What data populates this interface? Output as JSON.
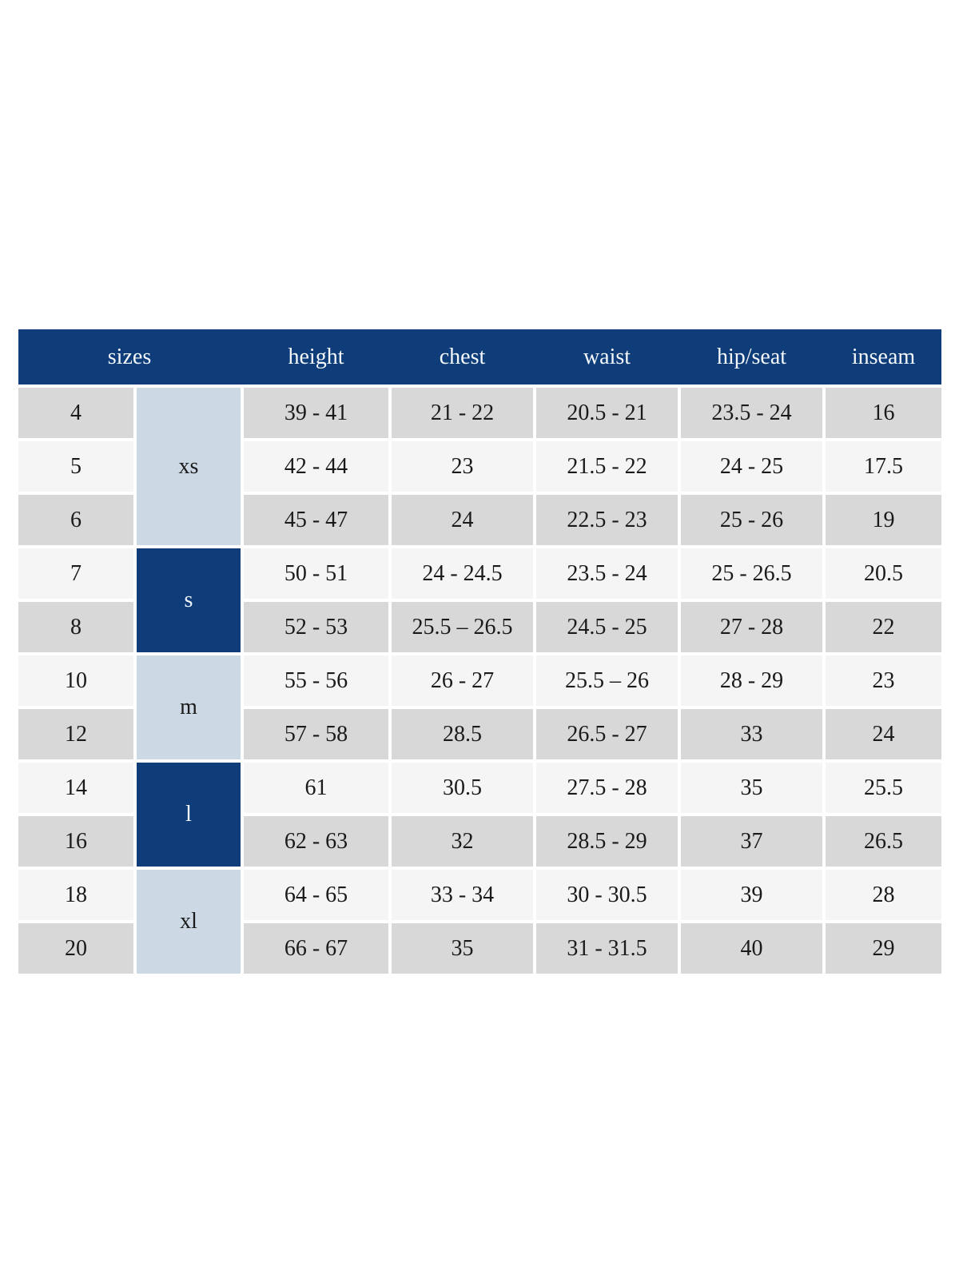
{
  "colors": {
    "header_bg": "#0e3d7a",
    "header_text": "#f5f8fc",
    "group_light_bg": "#ccd9e5",
    "group_dark_bg": "#0e3d7a",
    "row_gray_bg": "#d8d8d8",
    "row_light_bg": "#f5f5f5",
    "cell_text": "#1a1a1a",
    "page_bg": "#ffffff"
  },
  "table": {
    "headers": {
      "sizes": "sizes",
      "height": "height",
      "chest": "chest",
      "waist": "waist",
      "hip_seat": "hip/seat",
      "inseam": "inseam"
    },
    "groups": [
      {
        "label": "xs",
        "rows": 3,
        "shade": "light"
      },
      {
        "label": "s",
        "rows": 2,
        "shade": "dark"
      },
      {
        "label": "m",
        "rows": 2,
        "shade": "light"
      },
      {
        "label": "l",
        "rows": 2,
        "shade": "dark"
      },
      {
        "label": "xl",
        "rows": 2,
        "shade": "light"
      }
    ],
    "rows": [
      {
        "size": "4",
        "height": "39 - 41",
        "chest": "21 - 22",
        "waist": "20.5 - 21",
        "hip_seat": "23.5 - 24",
        "inseam": "16"
      },
      {
        "size": "5",
        "height": "42 - 44",
        "chest": "23",
        "waist": "21.5 - 22",
        "hip_seat": "24 - 25",
        "inseam": "17.5"
      },
      {
        "size": "6",
        "height": "45 - 47",
        "chest": "24",
        "waist": "22.5 - 23",
        "hip_seat": "25 - 26",
        "inseam": "19"
      },
      {
        "size": "7",
        "height": "50 - 51",
        "chest": "24 - 24.5",
        "waist": "23.5 - 24",
        "hip_seat": "25 - 26.5",
        "inseam": "20.5"
      },
      {
        "size": "8",
        "height": "52 - 53",
        "chest": "25.5 – 26.5",
        "waist": "24.5 - 25",
        "hip_seat": "27 - 28",
        "inseam": "22"
      },
      {
        "size": "10",
        "height": "55 - 56",
        "chest": "26 - 27",
        "waist": "25.5 – 26",
        "hip_seat": "28 - 29",
        "inseam": "23"
      },
      {
        "size": "12",
        "height": "57 - 58",
        "chest": "28.5",
        "waist": "26.5 - 27",
        "hip_seat": "33",
        "inseam": "24"
      },
      {
        "size": "14",
        "height": "61",
        "chest": "30.5",
        "waist": "27.5 - 28",
        "hip_seat": "35",
        "inseam": "25.5"
      },
      {
        "size": "16",
        "height": "62 - 63",
        "chest": "32",
        "waist": "28.5 - 29",
        "hip_seat": "37",
        "inseam": "26.5"
      },
      {
        "size": "18",
        "height": "64 - 65",
        "chest": "33 - 34",
        "waist": "30 - 30.5",
        "hip_seat": "39",
        "inseam": "28"
      },
      {
        "size": "20",
        "height": "66 - 67",
        "chest": "35",
        "waist": "31 - 31.5",
        "hip_seat": "40",
        "inseam": "29"
      }
    ]
  }
}
